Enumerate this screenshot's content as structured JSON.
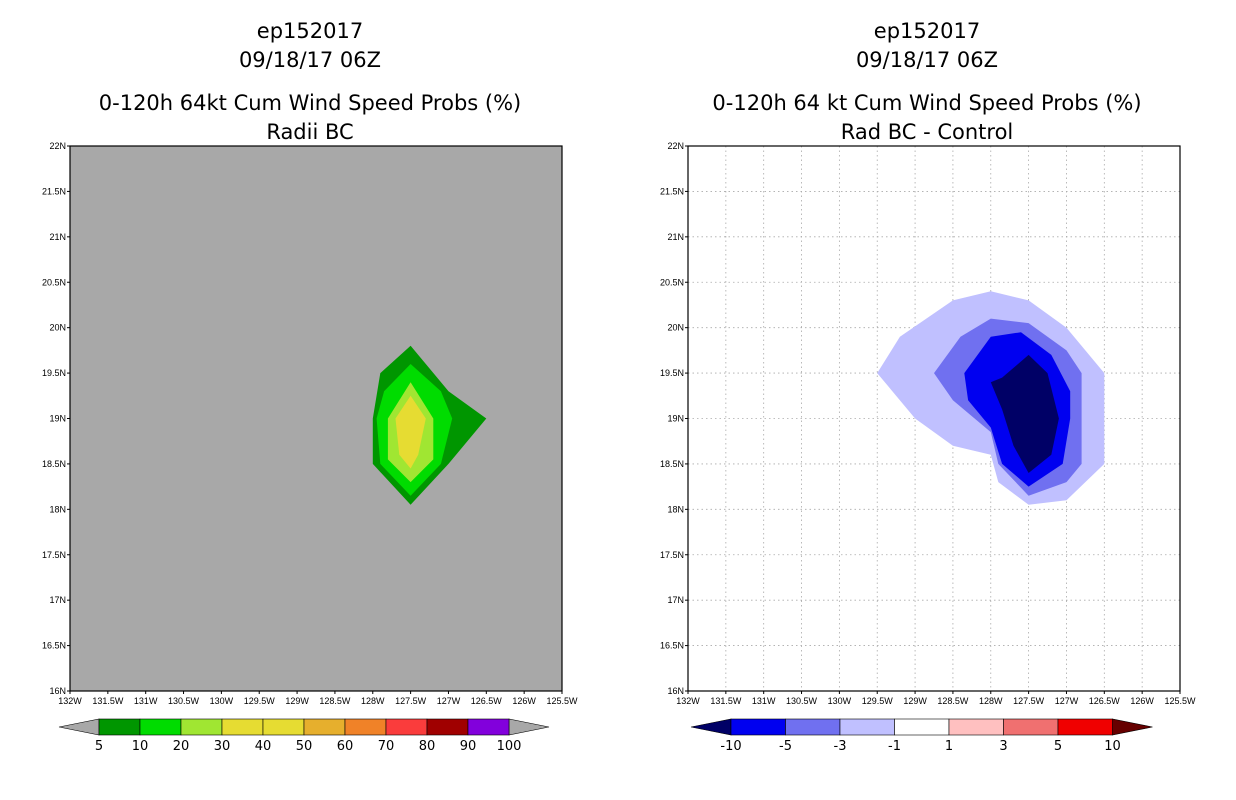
{
  "chart_data": [
    {
      "type": "contour",
      "title_lines": [
        "ep152017",
        "09/18/17 06Z",
        "0-120h 64kt Cum Wind Speed Probs (%)",
        "Radii BC"
      ],
      "x_ticks": [
        "132W",
        "131.5W",
        "131W",
        "130.5W",
        "130W",
        "129.5W",
        "129W",
        "128.5W",
        "128W",
        "127.5W",
        "127W",
        "126.5W",
        "126W",
        "125.5W"
      ],
      "y_ticks": [
        "16N",
        "16.5N",
        "17N",
        "17.5N",
        "18N",
        "18.5N",
        "19N",
        "19.5N",
        "20N",
        "20.5N",
        "21N",
        "21.5N",
        "22N"
      ],
      "xlim": [
        -132,
        -125.5
      ],
      "ylim": [
        16,
        22
      ],
      "background": "#a8a8a8",
      "grid": false,
      "contours": [
        {
          "level": 5,
          "color": "#009600",
          "poly": [
            [
              -127.5,
              19.8
            ],
            [
              -127,
              19.3
            ],
            [
              -126.5,
              19.0
            ],
            [
              -126.8,
              18.7
            ],
            [
              -127,
              18.5
            ],
            [
              -127.5,
              18.05
            ],
            [
              -128,
              18.5
            ],
            [
              -128,
              19.0
            ],
            [
              -127.9,
              19.5
            ]
          ]
        },
        {
          "level": 10,
          "color": "#00dc00",
          "poly": [
            [
              -127.5,
              19.6
            ],
            [
              -127.1,
              19.3
            ],
            [
              -126.95,
              19.0
            ],
            [
              -127.1,
              18.5
            ],
            [
              -127.5,
              18.15
            ],
            [
              -127.9,
              18.5
            ],
            [
              -127.95,
              19.0
            ],
            [
              -127.85,
              19.3
            ]
          ]
        },
        {
          "level": 20,
          "color": "#a0e632",
          "poly": [
            [
              -127.5,
              19.4
            ],
            [
              -127.2,
              19.0
            ],
            [
              -127.2,
              18.55
            ],
            [
              -127.5,
              18.3
            ],
            [
              -127.8,
              18.55
            ],
            [
              -127.8,
              19.0
            ]
          ]
        },
        {
          "level": 30,
          "color": "#e6dc32",
          "poly": [
            [
              -127.5,
              19.25
            ],
            [
              -127.3,
              19.0
            ],
            [
              -127.4,
              18.6
            ],
            [
              -127.5,
              18.45
            ],
            [
              -127.65,
              18.6
            ],
            [
              -127.7,
              19.0
            ]
          ]
        }
      ],
      "colorbar": {
        "colors": [
          "#009600",
          "#00dc00",
          "#a0e632",
          "#e6dc32",
          "#e6dc32",
          "#e6af2d",
          "#f08228",
          "#fa3c3c",
          "#a00000",
          "#8200dc"
        ],
        "labels": [
          "5",
          "10",
          "20",
          "30",
          "40",
          "50",
          "60",
          "70",
          "80",
          "90",
          "100"
        ],
        "end_color": "#a8a8a8"
      }
    },
    {
      "type": "contour",
      "title_lines": [
        "ep152017",
        "09/18/17 06Z",
        "0-120h 64 kt Cum Wind Speed Probs (%)",
        "Rad BC - Control"
      ],
      "x_ticks": [
        "132W",
        "131.5W",
        "131W",
        "130.5W",
        "130W",
        "129.5W",
        "129W",
        "128.5W",
        "128W",
        "127.5W",
        "127W",
        "126.5W",
        "126W",
        "125.5W"
      ],
      "y_ticks": [
        "16N",
        "16.5N",
        "17N",
        "17.5N",
        "18N",
        "18.5N",
        "19N",
        "19.5N",
        "20N",
        "20.5N",
        "21N",
        "21.5N",
        "22N"
      ],
      "xlim": [
        -132,
        -125.5
      ],
      "ylim": [
        16,
        22
      ],
      "background": "#ffffff",
      "grid": true,
      "contours": [
        {
          "level": -1,
          "color": "#c0c0ff",
          "poly": [
            [
              -129.5,
              19.5
            ],
            [
              -129.2,
              19.9
            ],
            [
              -128.5,
              20.3
            ],
            [
              -128.0,
              20.4
            ],
            [
              -127.5,
              20.3
            ],
            [
              -127.0,
              20.0
            ],
            [
              -126.5,
              19.5
            ],
            [
              -126.5,
              18.5
            ],
            [
              -127.0,
              18.1
            ],
            [
              -127.5,
              18.05
            ],
            [
              -127.9,
              18.3
            ],
            [
              -128.0,
              18.6
            ],
            [
              -128.5,
              18.7
            ],
            [
              -129.0,
              19.0
            ]
          ]
        },
        {
          "level": -3,
          "color": "#7070f0",
          "poly": [
            [
              -128.4,
              19.9
            ],
            [
              -128.0,
              20.1
            ],
            [
              -127.5,
              20.05
            ],
            [
              -127.0,
              19.75
            ],
            [
              -126.8,
              19.5
            ],
            [
              -126.8,
              18.5
            ],
            [
              -127.0,
              18.3
            ],
            [
              -127.5,
              18.15
            ],
            [
              -127.9,
              18.5
            ],
            [
              -128.0,
              18.85
            ],
            [
              -128.5,
              19.2
            ],
            [
              -128.75,
              19.5
            ]
          ]
        },
        {
          "level": -5,
          "color": "#0000f0",
          "poly": [
            [
              -128.35,
              19.5
            ],
            [
              -128.0,
              19.9
            ],
            [
              -127.6,
              19.95
            ],
            [
              -127.2,
              19.7
            ],
            [
              -126.95,
              19.3
            ],
            [
              -126.95,
              19.0
            ],
            [
              -127.05,
              18.5
            ],
            [
              -127.5,
              18.25
            ],
            [
              -127.85,
              18.5
            ],
            [
              -128.0,
              18.9
            ],
            [
              -128.3,
              19.2
            ]
          ]
        },
        {
          "level": -10,
          "color": "#000066",
          "poly": [
            [
              -127.85,
              19.45
            ],
            [
              -127.5,
              19.7
            ],
            [
              -127.25,
              19.5
            ],
            [
              -127.1,
              19.0
            ],
            [
              -127.2,
              18.6
            ],
            [
              -127.5,
              18.4
            ],
            [
              -127.7,
              18.7
            ],
            [
              -127.85,
              19.1
            ],
            [
              -128.0,
              19.4
            ]
          ]
        }
      ],
      "colorbar": {
        "colors": [
          "#0000f0",
          "#7070f0",
          "#c0c0ff",
          "#ffffff",
          "#ffc0c0",
          "#f07070",
          "#f00000"
        ],
        "labels": [
          "-10",
          "-5",
          "-3",
          "-1",
          "1",
          "3",
          "5",
          "10"
        ],
        "left_end_color": "#000066",
        "right_end_color": "#660000"
      }
    }
  ]
}
